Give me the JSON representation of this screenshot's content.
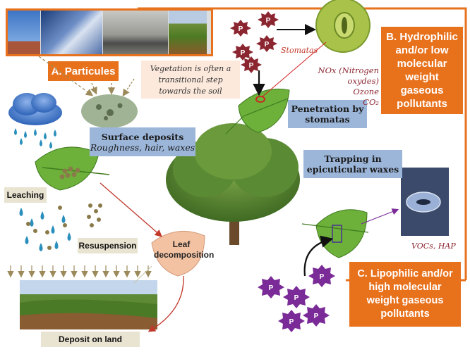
{
  "sections": {
    "a_label": "A. Particules",
    "b_label_lines": [
      "B. Hydrophilic",
      "and/or low",
      "molecular",
      "weight",
      "gaseous",
      "pollutants"
    ],
    "c_label_lines": [
      "C. Lipophilic and/or",
      "high molecular",
      "weight gaseous",
      "pollutants"
    ]
  },
  "note_lines": [
    "Vegetation is often a",
    "transitional step",
    "towards the soil"
  ],
  "surface_deposits": {
    "title": "Surface deposits",
    "subtitle": "Roughness, hair, waxes"
  },
  "penetration_lines": [
    "Penetration by",
    "stomatas"
  ],
  "trapping_lines": [
    "Trapping in",
    "epicuticular waxes"
  ],
  "leaching": "Leaching",
  "resuspension": "Resuspension",
  "leaf_decomposition_lines": [
    "Leaf",
    "decomposition"
  ],
  "deposit_on_land": "Deposit on land",
  "stomatas_label": "Stomatas",
  "gases": [
    "NOx (Nitrogen oxydes)",
    "Ozone",
    "CO₂"
  ],
  "vocs_label": "VOCs, HAP",
  "particle_letter": "P",
  "colors": {
    "orange": "#e8711c",
    "blue_box": "#9cb6da",
    "beige_box": "#e9e3d2",
    "maroon_particle": "#8b2630",
    "purple_particle": "#7b2b97"
  }
}
